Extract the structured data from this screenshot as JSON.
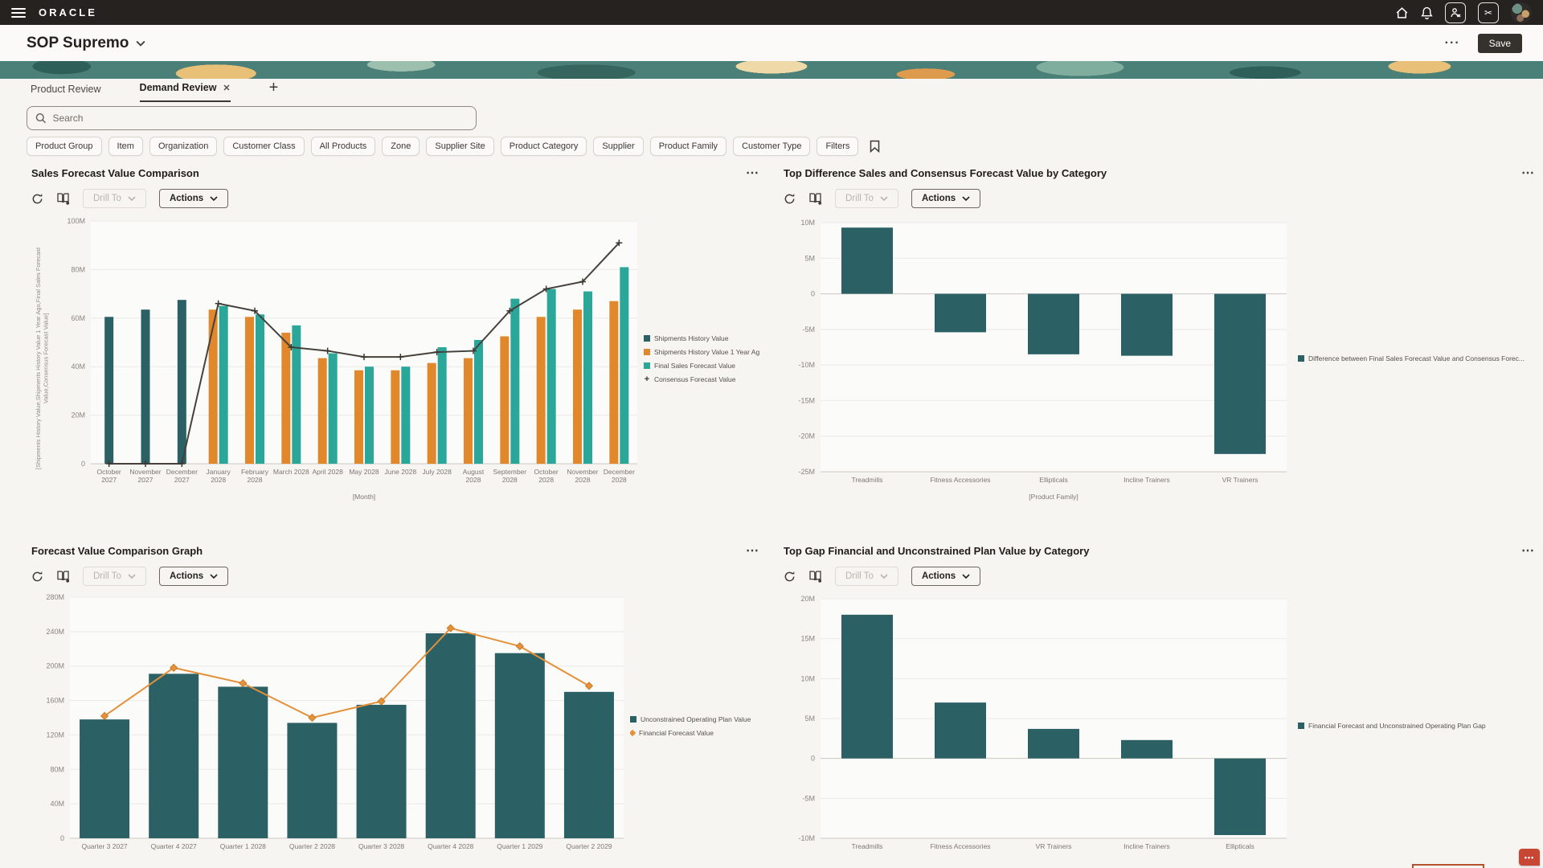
{
  "topbar": {
    "logo": "ORACLE",
    "icons": [
      "hamburger-menu",
      "home",
      "notifications",
      "person-x-tool",
      "scissors-tool",
      "avatar"
    ]
  },
  "header": {
    "title": "SOP Supremo",
    "save_label": "Save"
  },
  "tabs": [
    {
      "label": "Product Review",
      "active": false
    },
    {
      "label": "Demand Review",
      "active": true,
      "closable": true
    }
  ],
  "search": {
    "placeholder": "Search"
  },
  "filter_chips": [
    "Product Group",
    "Item",
    "Organization",
    "Customer Class",
    "All Products",
    "Zone",
    "Supplier Site",
    "Product Category",
    "Supplier",
    "Product Family",
    "Customer Type",
    "Filters"
  ],
  "panel_toolbar": {
    "drill_to_label": "Drill To",
    "actions_label": "Actions"
  },
  "chart_data": [
    {
      "type": "bar-line",
      "title": "Sales Forecast Value Comparison",
      "xlabel": "[Month]",
      "ylabel": "[Shipments History Value,Shipments History Value 1 Year Ago,Final Sales Forecast Value,Consensus Forecast Value]",
      "ylim": [
        0,
        100
      ],
      "ystep": 20,
      "yunit": "M",
      "legend_position": "right",
      "categories": [
        "October 2027",
        "November 2027",
        "December 2027",
        "January 2028",
        "February 2028",
        "March 2028",
        "April 2028",
        "May 2028",
        "June 2028",
        "July 2028",
        "August 2028",
        "September 2028",
        "October 2028",
        "November 2028",
        "December 2028"
      ],
      "series": [
        {
          "name": "Shipments History Value",
          "type": "bar",
          "color": "#2b6065",
          "values": [
            60.5,
            63.5,
            67.5,
            null,
            null,
            null,
            null,
            null,
            null,
            null,
            null,
            null,
            null,
            null,
            null
          ]
        },
        {
          "name": "Shipments History Value 1 Year Ago",
          "type": "bar",
          "color": "#e1872c",
          "values": [
            null,
            null,
            null,
            63.5,
            60.5,
            54,
            43.5,
            38.5,
            38.5,
            41.5,
            43.5,
            52.5,
            60.5,
            63.5,
            67
          ]
        },
        {
          "name": "Final Sales Forecast Value",
          "type": "bar",
          "color": "#2ba79a",
          "values": [
            null,
            null,
            null,
            65,
            61.5,
            57,
            45.5,
            40,
            40,
            48,
            51,
            68,
            72,
            71,
            81
          ]
        },
        {
          "name": "Consensus Forecast Value",
          "type": "line",
          "marker": "plus",
          "color": "#46413b",
          "values": [
            0,
            0,
            0,
            66,
            63,
            48,
            46.5,
            44,
            44,
            46,
            46.5,
            63,
            72,
            75,
            91
          ]
        }
      ]
    },
    {
      "type": "bar",
      "title": "Top Difference Sales and Consensus Forecast Value by Category",
      "xlabel": "[Product Family]",
      "ylim": [
        -25,
        10
      ],
      "ystep": 5,
      "yunit": "M",
      "legend_position": "right",
      "categories": [
        "Treadmills",
        "Fitness Accessories",
        "Ellipticals",
        "Incline Trainers",
        "VR Trainers"
      ],
      "series": [
        {
          "name": "Difference between Final Sales Forecast Value and Consensus Forec...",
          "type": "bar",
          "color": "#2b6065",
          "values": [
            9.3,
            -5.4,
            -8.5,
            -8.7,
            -22.5
          ]
        }
      ]
    },
    {
      "type": "bar-line",
      "title": "Forecast Value Comparison Graph",
      "xlabel": "",
      "ylim": [
        0,
        280
      ],
      "ystep": 40,
      "yunit": "M",
      "legend_position": "right",
      "categories": [
        "Quarter 3 2027",
        "Quarter 4 2027",
        "Quarter 1 2028",
        "Quarter 2 2028",
        "Quarter 3 2028",
        "Quarter 4 2028",
        "Quarter 1 2029",
        "Quarter 2 2029"
      ],
      "series": [
        {
          "name": "Unconstrained Operating Plan Value",
          "type": "bar",
          "color": "#2b6065",
          "values": [
            138,
            191,
            176,
            134,
            155,
            238,
            215,
            170
          ]
        },
        {
          "name": "Financial Forecast Value",
          "type": "line",
          "marker": "diamond",
          "color": "#e3913a",
          "values": [
            142,
            198,
            180,
            140,
            159,
            244,
            223,
            177
          ]
        }
      ]
    },
    {
      "type": "bar",
      "title": "Top Gap Financial and Unconstrained Plan Value by Category",
      "xlabel": "",
      "ylim": [
        -10,
        20
      ],
      "ystep": 5,
      "yunit": "M",
      "legend_position": "right",
      "categories": [
        "Treadmills",
        "Fitness Accessories",
        "VR Trainers",
        "Incline Trainers",
        "Ellipticals"
      ],
      "series": [
        {
          "name": "Financial Forecast and Unconstrained Operating Plan Gap",
          "type": "bar",
          "color": "#2b6065",
          "values": [
            18,
            7,
            3.7,
            2.3,
            -9.6
          ]
        }
      ]
    }
  ]
}
